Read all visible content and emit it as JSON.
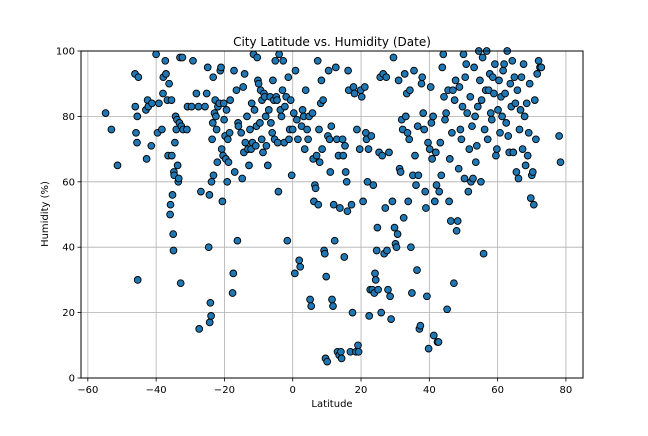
{
  "chart_data": {
    "type": "scatter",
    "title": "City Latitude vs. Humidity (Date)",
    "xlabel": "Latitude",
    "ylabel": "Humidity (%)",
    "xlim": [
      -62,
      85
    ],
    "ylim": [
      0,
      100
    ],
    "xticks": [
      -60,
      -40,
      -20,
      0,
      20,
      40,
      60,
      80
    ],
    "yticks": [
      0,
      20,
      40,
      60,
      80,
      100
    ],
    "grid": true,
    "marker_color": "#1f77b4",
    "marker_edge_color": "#000000",
    "points": [
      [
        -54.8,
        81
      ],
      [
        -53.1,
        76
      ],
      [
        -51.3,
        65
      ],
      [
        -46.2,
        93
      ],
      [
        -46.1,
        83
      ],
      [
        -45.9,
        75
      ],
      [
        -45.6,
        72
      ],
      [
        -45.5,
        80
      ],
      [
        -45.4,
        30
      ],
      [
        -45.2,
        92
      ],
      [
        -43.0,
        82
      ],
      [
        -42.8,
        67
      ],
      [
        -42.5,
        85
      ],
      [
        -42.3,
        83
      ],
      [
        -41.4,
        71
      ],
      [
        -41.2,
        84
      ],
      [
        -40.0,
        99
      ],
      [
        -39.6,
        75
      ],
      [
        -39.2,
        84
      ],
      [
        -38.3,
        76
      ],
      [
        -38.0,
        87
      ],
      [
        -37.9,
        92
      ],
      [
        -37.3,
        97
      ],
      [
        -37.1,
        93
      ],
      [
        -36.7,
        85
      ],
      [
        -36.5,
        68
      ],
      [
        -36.2,
        90
      ],
      [
        -35.9,
        50
      ],
      [
        -35.8,
        53
      ],
      [
        -35.5,
        85
      ],
      [
        -35.4,
        68
      ],
      [
        -35.2,
        56
      ],
      [
        -35.0,
        44
      ],
      [
        -34.9,
        39
      ],
      [
        -34.8,
        63
      ],
      [
        -34.7,
        62
      ],
      [
        -34.5,
        72
      ],
      [
        -34.3,
        80
      ],
      [
        -34.1,
        76
      ],
      [
        -33.9,
        79
      ],
      [
        -33.7,
        65
      ],
      [
        -33.5,
        60
      ],
      [
        -33.4,
        61
      ],
      [
        -33.2,
        78
      ],
      [
        -33.0,
        98
      ],
      [
        -32.8,
        29
      ],
      [
        -32.6,
        77
      ],
      [
        -32.3,
        98
      ],
      [
        -32.1,
        76
      ],
      [
        -31.0,
        76
      ],
      [
        -30.8,
        83
      ],
      [
        -29.6,
        83
      ],
      [
        -29.2,
        97
      ],
      [
        -28.2,
        87
      ],
      [
        -27.6,
        83
      ],
      [
        -27.4,
        15
      ],
      [
        -26.9,
        57
      ],
      [
        -25.7,
        83
      ],
      [
        -25.2,
        87
      ],
      [
        -24.9,
        95
      ],
      [
        -24.6,
        40
      ],
      [
        -24.4,
        56
      ],
      [
        -24.3,
        17
      ],
      [
        -24.1,
        23
      ],
      [
        -23.9,
        19
      ],
      [
        -23.8,
        60
      ],
      [
        -23.6,
        73
      ],
      [
        -23.4,
        78
      ],
      [
        -23.3,
        92
      ],
      [
        -23.2,
        62
      ],
      [
        -22.9,
        81
      ],
      [
        -22.7,
        85
      ],
      [
        -22.5,
        80
      ],
      [
        -22.3,
        76
      ],
      [
        -22.1,
        66
      ],
      [
        -21.9,
        83
      ],
      [
        -21.5,
        84
      ],
      [
        -21.2,
        94
      ],
      [
        -21.0,
        95
      ],
      [
        -20.8,
        70
      ],
      [
        -20.6,
        54
      ],
      [
        -20.4,
        68
      ],
      [
        -20.2,
        84
      ],
      [
        -20.1,
        79
      ],
      [
        -19.8,
        74
      ],
      [
        -19.6,
        67
      ],
      [
        -19.4,
        82
      ],
      [
        -19.2,
        60
      ],
      [
        -19.0,
        73
      ],
      [
        -18.8,
        66
      ],
      [
        -18.5,
        75
      ],
      [
        -18.3,
        85
      ],
      [
        -17.6,
        26
      ],
      [
        -17.4,
        32
      ],
      [
        -17.2,
        94
      ],
      [
        -17.0,
        63
      ],
      [
        -16.5,
        88
      ],
      [
        -16.2,
        42
      ],
      [
        -16.0,
        78
      ],
      [
        -15.9,
        77
      ],
      [
        -15.1,
        75
      ],
      [
        -14.8,
        61
      ],
      [
        -14.5,
        89
      ],
      [
        -14.3,
        69
      ],
      [
        -14.1,
        93
      ],
      [
        -13.9,
        72
      ],
      [
        -13.4,
        80
      ],
      [
        -13.1,
        70
      ],
      [
        -12.8,
        65
      ],
      [
        -12.5,
        76
      ],
      [
        -12.2,
        70
      ],
      [
        -12.0,
        84
      ],
      [
        -11.8,
        72
      ],
      [
        -11.5,
        99
      ],
      [
        -11.2,
        82
      ],
      [
        -10.8,
        71
      ],
      [
        -10.6,
        77
      ],
      [
        -10.4,
        98
      ],
      [
        -10.2,
        91
      ],
      [
        -10.0,
        90
      ],
      [
        -9.6,
        78
      ],
      [
        -9.4,
        88
      ],
      [
        -9.1,
        73
      ],
      [
        -9.0,
        85
      ],
      [
        -8.7,
        69
      ],
      [
        -8.4,
        87
      ],
      [
        -8.2,
        86
      ],
      [
        -7.9,
        80
      ],
      [
        -7.7,
        71
      ],
      [
        -7.3,
        65
      ],
      [
        -7.0,
        82
      ],
      [
        -6.6,
        86
      ],
      [
        -6.4,
        78
      ],
      [
        -6.0,
        75
      ],
      [
        -5.8,
        91
      ],
      [
        -5.5,
        85
      ],
      [
        -5.3,
        73
      ],
      [
        -5.1,
        97
      ],
      [
        -4.8,
        86
      ],
      [
        -4.6,
        85
      ],
      [
        -4.4,
        72
      ],
      [
        -4.2,
        57
      ],
      [
        -4.0,
        99
      ],
      [
        -3.6,
        82
      ],
      [
        -3.3,
        80
      ],
      [
        -3.0,
        88
      ],
      [
        -2.8,
        97
      ],
      [
        -2.5,
        72
      ],
      [
        -2.3,
        83
      ],
      [
        -1.9,
        86
      ],
      [
        -1.6,
        42
      ],
      [
        -1.3,
        92
      ],
      [
        -1.1,
        73
      ],
      [
        -0.9,
        76
      ],
      [
        -0.6,
        85
      ],
      [
        -0.3,
        62
      ],
      [
        0.0,
        76
      ],
      [
        0.3,
        81
      ],
      [
        0.6,
        32
      ],
      [
        0.8,
        94
      ],
      [
        1.2,
        79
      ],
      [
        1.5,
        73
      ],
      [
        1.9,
        36
      ],
      [
        2.2,
        34
      ],
      [
        2.6,
        77
      ],
      [
        2.9,
        82
      ],
      [
        3.2,
        80
      ],
      [
        3.5,
        70
      ],
      [
        3.8,
        88
      ],
      [
        4.2,
        76
      ],
      [
        4.5,
        73
      ],
      [
        4.8,
        80
      ],
      [
        5.1,
        24
      ],
      [
        5.4,
        22
      ],
      [
        5.8,
        81
      ],
      [
        6.0,
        67
      ],
      [
        6.2,
        54
      ],
      [
        6.5,
        59
      ],
      [
        6.7,
        58
      ],
      [
        7.0,
        68
      ],
      [
        7.3,
        97
      ],
      [
        7.5,
        53
      ],
      [
        7.7,
        76
      ],
      [
        7.9,
        66
      ],
      [
        8.2,
        84
      ],
      [
        8.4,
        91
      ],
      [
        8.6,
        70
      ],
      [
        8.9,
        85
      ],
      [
        9.2,
        39
      ],
      [
        9.4,
        38
      ],
      [
        9.6,
        6
      ],
      [
        9.8,
        31
      ],
      [
        10.1,
        5
      ],
      [
        10.3,
        74
      ],
      [
        10.5,
        94
      ],
      [
        10.8,
        73
      ],
      [
        11.0,
        63
      ],
      [
        11.3,
        77
      ],
      [
        11.5,
        24
      ],
      [
        11.8,
        22
      ],
      [
        12.0,
        53
      ],
      [
        12.3,
        42
      ],
      [
        12.6,
        95
      ],
      [
        12.9,
        73
      ],
      [
        13.1,
        8
      ],
      [
        13.4,
        68
      ],
      [
        13.6,
        7
      ],
      [
        13.8,
        52
      ],
      [
        14.1,
        8
      ],
      [
        14.3,
        6
      ],
      [
        14.6,
        73
      ],
      [
        14.8,
        68
      ],
      [
        15.1,
        37
      ],
      [
        15.3,
        71
      ],
      [
        15.5,
        63
      ],
      [
        15.8,
        60
      ],
      [
        16.0,
        51
      ],
      [
        16.2,
        94
      ],
      [
        16.4,
        88
      ],
      [
        16.9,
        8
      ],
      [
        17.2,
        53
      ],
      [
        17.5,
        20
      ],
      [
        17.8,
        89
      ],
      [
        18.1,
        87
      ],
      [
        18.5,
        8
      ],
      [
        18.8,
        76
      ],
      [
        19.1,
        10
      ],
      [
        19.3,
        8
      ],
      [
        19.6,
        70
      ],
      [
        19.9,
        88
      ],
      [
        20.2,
        86
      ],
      [
        20.6,
        54
      ],
      [
        21.1,
        89
      ],
      [
        21.4,
        75
      ],
      [
        21.6,
        73
      ],
      [
        21.9,
        60
      ],
      [
        22.2,
        70
      ],
      [
        22.4,
        19
      ],
      [
        22.7,
        27
      ],
      [
        23.0,
        74
      ],
      [
        23.3,
        27
      ],
      [
        23.6,
        59
      ],
      [
        23.9,
        26
      ],
      [
        24.1,
        32
      ],
      [
        24.3,
        30
      ],
      [
        24.6,
        39
      ],
      [
        24.8,
        46
      ],
      [
        25.0,
        27
      ],
      [
        25.3,
        69
      ],
      [
        25.6,
        92
      ],
      [
        25.9,
        20
      ],
      [
        26.2,
        68
      ],
      [
        26.5,
        93
      ],
      [
        26.8,
        38
      ],
      [
        27.1,
        52
      ],
      [
        27.4,
        92
      ],
      [
        27.6,
        39
      ],
      [
        27.9,
        27
      ],
      [
        28.2,
        69
      ],
      [
        28.5,
        25
      ],
      [
        28.8,
        18
      ],
      [
        29.2,
        54
      ],
      [
        29.5,
        98
      ],
      [
        29.8,
        46
      ],
      [
        30.1,
        41
      ],
      [
        30.4,
        40
      ],
      [
        30.7,
        44
      ],
      [
        31.0,
        91
      ],
      [
        31.3,
        64
      ],
      [
        31.6,
        63
      ],
      [
        31.9,
        79
      ],
      [
        32.2,
        76
      ],
      [
        32.5,
        49
      ],
      [
        32.8,
        93
      ],
      [
        33.1,
        80
      ],
      [
        33.4,
        87
      ],
      [
        33.6,
        75
      ],
      [
        33.8,
        54
      ],
      [
        34.1,
        73
      ],
      [
        34.3,
        88
      ],
      [
        34.6,
        40
      ],
      [
        34.9,
        26
      ],
      [
        35.2,
        62
      ],
      [
        35.5,
        94
      ],
      [
        35.8,
        68
      ],
      [
        36.1,
        59
      ],
      [
        36.4,
        33
      ],
      [
        36.6,
        77
      ],
      [
        36.8,
        62
      ],
      [
        37.1,
        15
      ],
      [
        37.4,
        16
      ],
      [
        37.7,
        90
      ],
      [
        37.9,
        92
      ],
      [
        38.2,
        81
      ],
      [
        38.5,
        76
      ],
      [
        38.8,
        57
      ],
      [
        39.0,
        52
      ],
      [
        39.3,
        25
      ],
      [
        39.6,
        72
      ],
      [
        39.8,
        9
      ],
      [
        40.1,
        70
      ],
      [
        40.4,
        89
      ],
      [
        40.6,
        78
      ],
      [
        40.8,
        67
      ],
      [
        41.1,
        80
      ],
      [
        41.3,
        13
      ],
      [
        41.6,
        54
      ],
      [
        41.9,
        69
      ],
      [
        42.1,
        59
      ],
      [
        42.4,
        11
      ],
      [
        42.7,
        11
      ],
      [
        42.9,
        57
      ],
      [
        43.2,
        72
      ],
      [
        43.5,
        62
      ],
      [
        43.8,
        95
      ],
      [
        44.1,
        99
      ],
      [
        44.3,
        86
      ],
      [
        44.6,
        79
      ],
      [
        44.9,
        81
      ],
      [
        45.2,
        21
      ],
      [
        45.5,
        88
      ],
      [
        45.8,
        54
      ],
      [
        46.0,
        67
      ],
      [
        46.3,
        48
      ],
      [
        46.6,
        75
      ],
      [
        46.9,
        88
      ],
      [
        47.2,
        29
      ],
      [
        47.4,
        85
      ],
      [
        47.7,
        91
      ],
      [
        48.0,
        45
      ],
      [
        48.3,
        48
      ],
      [
        48.6,
        64
      ],
      [
        48.8,
        89
      ],
      [
        49.1,
        76
      ],
      [
        49.4,
        73
      ],
      [
        49.7,
        83
      ],
      [
        50.0,
        99
      ],
      [
        50.3,
        61
      ],
      [
        50.5,
        92
      ],
      [
        50.8,
        96
      ],
      [
        51.1,
        81
      ],
      [
        51.4,
        57
      ],
      [
        51.7,
        70
      ],
      [
        52.0,
        86
      ],
      [
        52.2,
        60
      ],
      [
        52.5,
        77
      ],
      [
        52.8,
        61
      ],
      [
        53.1,
        95
      ],
      [
        53.4,
        80
      ],
      [
        53.6,
        66
      ],
      [
        53.9,
        71
      ],
      [
        54.2,
        83
      ],
      [
        54.5,
        100
      ],
      [
        54.8,
        91
      ],
      [
        55.1,
        60
      ],
      [
        55.3,
        85
      ],
      [
        55.6,
        98
      ],
      [
        55.9,
        38
      ],
      [
        56.2,
        76
      ],
      [
        56.5,
        88
      ],
      [
        56.8,
        100
      ],
      [
        57.1,
        73
      ],
      [
        57.4,
        88
      ],
      [
        57.7,
        93
      ],
      [
        58.0,
        81
      ],
      [
        58.3,
        79
      ],
      [
        58.6,
        92
      ],
      [
        58.9,
        87
      ],
      [
        59.2,
        96
      ],
      [
        59.5,
        68
      ],
      [
        59.8,
        70
      ],
      [
        60.1,
        82
      ],
      [
        60.4,
        91
      ],
      [
        60.7,
        75
      ],
      [
        61.0,
        86
      ],
      [
        61.3,
        80
      ],
      [
        61.6,
        94
      ],
      [
        61.9,
        96
      ],
      [
        62.2,
        87
      ],
      [
        62.5,
        78
      ],
      [
        62.8,
        100
      ],
      [
        63.1,
        74
      ],
      [
        63.4,
        69
      ],
      [
        63.7,
        90
      ],
      [
        64.0,
        83
      ],
      [
        64.3,
        97
      ],
      [
        64.6,
        69
      ],
      [
        64.9,
        92
      ],
      [
        65.2,
        84
      ],
      [
        65.5,
        63
      ],
      [
        65.8,
        88
      ],
      [
        66.1,
        61
      ],
      [
        66.4,
        76
      ],
      [
        66.7,
        82
      ],
      [
        67.0,
        92
      ],
      [
        67.3,
        70
      ],
      [
        67.6,
        96
      ],
      [
        67.9,
        80
      ],
      [
        68.2,
        65
      ],
      [
        68.5,
        84
      ],
      [
        68.8,
        68
      ],
      [
        69.1,
        75
      ],
      [
        69.4,
        90
      ],
      [
        69.7,
        55
      ],
      [
        70.0,
        62
      ],
      [
        70.3,
        63
      ],
      [
        70.6,
        53
      ],
      [
        70.9,
        85
      ],
      [
        71.2,
        73
      ],
      [
        71.6,
        93
      ],
      [
        72.0,
        97
      ],
      [
        72.4,
        95
      ],
      [
        72.8,
        95
      ],
      [
        78.0,
        74
      ],
      [
        78.4,
        66
      ]
    ]
  }
}
